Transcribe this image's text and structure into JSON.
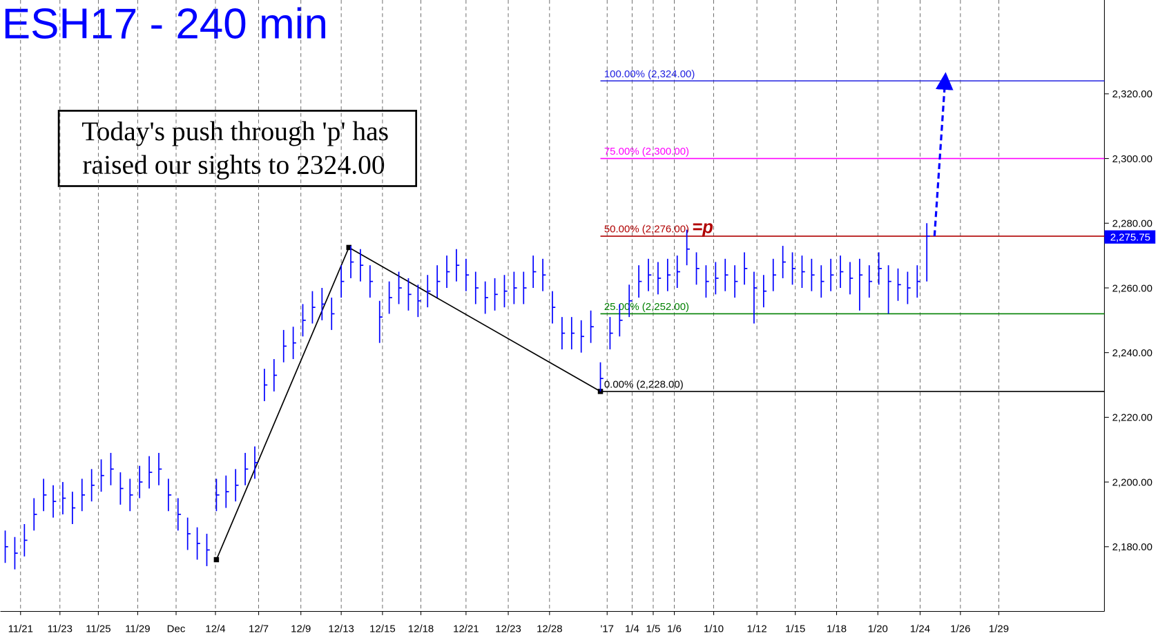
{
  "chart_data": {
    "type": "ohlc",
    "title": "ESH17 - 240 min",
    "color": "#0000ff",
    "high": [
      2185,
      2183,
      2187,
      2195,
      2201,
      2199,
      2200,
      2197,
      2201,
      2204,
      2207,
      2209,
      2203,
      2201,
      2205,
      2208,
      2209,
      2201,
      2195,
      2189,
      2186,
      2184,
      2201,
      2202,
      2204,
      2209,
      2211,
      2235,
      2238,
      2247,
      2248,
      2255,
      2259,
      2260,
      2257,
      2267,
      2273,
      2272,
      2267,
      2256,
      2262,
      2265,
      2263,
      2261,
      2264,
      2267,
      2270,
      2272,
      2269,
      2265,
      2262,
      2263,
      2264,
      2265,
      2265,
      2270,
      2269,
      2259,
      2251,
      2251,
      2250,
      2253,
      2237,
      2251,
      2255,
      2261,
      2267,
      2269,
      2268,
      2269,
      2270,
      2278,
      2271,
      2267,
      2268,
      2269,
      2267,
      2271,
      2265,
      2264,
      2269,
      2273,
      2271,
      2270,
      2269,
      2267,
      2269,
      2270,
      2268,
      2269,
      2267,
      2271,
      2267,
      2266,
      2265,
      2267,
      2280
    ],
    "low": [
      2175,
      2173,
      2177,
      2185,
      2191,
      2189,
      2190,
      2187,
      2191,
      2194,
      2197,
      2199,
      2193,
      2191,
      2195,
      2198,
      2199,
      2191,
      2185,
      2179,
      2176,
      2174,
      2191,
      2192,
      2194,
      2199,
      2201,
      2225,
      2228,
      2237,
      2238,
      2245,
      2249,
      2250,
      2247,
      2257,
      2263,
      2262,
      2257,
      2243,
      2252,
      2255,
      2253,
      2251,
      2254,
      2257,
      2260,
      2262,
      2259,
      2255,
      2252,
      2253,
      2254,
      2255,
      2255,
      2260,
      2259,
      2249,
      2241,
      2241,
      2240,
      2243,
      2228,
      2241,
      2245,
      2251,
      2257,
      2259,
      2258,
      2259,
      2260,
      2267,
      2261,
      2257,
      2258,
      2259,
      2257,
      2261,
      2249,
      2254,
      2259,
      2263,
      2261,
      2260,
      2259,
      2257,
      2259,
      2260,
      2258,
      2253,
      2257,
      2261,
      2252,
      2256,
      2255,
      2257,
      2262
    ],
    "close": [
      2180,
      2178,
      2182,
      2190,
      2196,
      2194,
      2195,
      2192,
      2196,
      2199,
      2202,
      2204,
      2198,
      2196,
      2200,
      2203,
      2204,
      2196,
      2190,
      2184,
      2181,
      2179,
      2196,
      2197,
      2199,
      2204,
      2206,
      2230,
      2233,
      2242,
      2243,
      2250,
      2254,
      2255,
      2252,
      2262,
      2268,
      2267,
      2262,
      2251,
      2257,
      2260,
      2258,
      2256,
      2259,
      2262,
      2265,
      2267,
      2264,
      2260,
      2257,
      2258,
      2259,
      2260,
      2260,
      2265,
      2264,
      2254,
      2246,
      2246,
      2245,
      2248,
      2232,
      2246,
      2250,
      2256,
      2262,
      2264,
      2263,
      2264,
      2265,
      2272,
      2266,
      2262,
      2263,
      2264,
      2262,
      2266,
      2260,
      2259,
      2264,
      2268,
      2266,
      2265,
      2264,
      2262,
      2264,
      2265,
      2263,
      2264,
      2262,
      2266,
      2262,
      2261,
      2260,
      2262,
      2276
    ],
    "xlim": [
      0,
      115
    ],
    "xticks": [
      {
        "value": 2.1,
        "label": "11/21"
      },
      {
        "value": 6.2,
        "label": "11/23"
      },
      {
        "value": 10.2,
        "label": "11/25"
      },
      {
        "value": 14.3,
        "label": "11/29"
      },
      {
        "value": 18.3,
        "label": "Dec"
      },
      {
        "value": 22.4,
        "label": "12/4"
      },
      {
        "value": 26.9,
        "label": "12/7"
      },
      {
        "value": 31.3,
        "label": "12/9"
      },
      {
        "value": 35.5,
        "label": "12/13"
      },
      {
        "value": 39.8,
        "label": "12/15"
      },
      {
        "value": 43.8,
        "label": "12/18"
      },
      {
        "value": 48.5,
        "label": "12/21"
      },
      {
        "value": 52.9,
        "label": "12/23"
      },
      {
        "value": 57.2,
        "label": "12/28"
      },
      {
        "value": 63.2,
        "label": "'17"
      },
      {
        "value": 65.8,
        "label": "1/4"
      },
      {
        "value": 68.0,
        "label": "1/5"
      },
      {
        "value": 70.2,
        "label": "1/6"
      },
      {
        "value": 74.3,
        "label": "1/10"
      },
      {
        "value": 78.8,
        "label": "1/12"
      },
      {
        "value": 82.8,
        "label": "1/15"
      },
      {
        "value": 87.1,
        "label": "1/18"
      },
      {
        "value": 91.4,
        "label": "1/20"
      },
      {
        "value": 95.8,
        "label": "1/24"
      },
      {
        "value": 100.0,
        "label": "1/26"
      },
      {
        "value": 104.0,
        "label": "1/29"
      }
    ],
    "ylim": [
      2160,
      2349
    ],
    "yticks": [
      {
        "value": 2180,
        "label": "2,180.00"
      },
      {
        "value": 2200,
        "label": "2,200.00"
      },
      {
        "value": 2220,
        "label": "2,220.00"
      },
      {
        "value": 2240,
        "label": "2,240.00"
      },
      {
        "value": 2260,
        "label": "2,260.00"
      },
      {
        "value": 2280,
        "label": "2,280.00"
      },
      {
        "value": 2300,
        "label": "2,300.00"
      },
      {
        "value": 2320,
        "label": "2,320.00"
      }
    ],
    "grid": true,
    "last_price": {
      "value": 2275.75,
      "label": "2,275.75"
    },
    "fib_start": 62.5,
    "fib_levels": [
      {
        "label": "100.00% (2,324.00)",
        "value": 2324,
        "color": "#2020e0"
      },
      {
        "label": "75.00% (2,300.00)",
        "value": 2300,
        "color": "#ff00ff"
      },
      {
        "label": "50.00% (2,276.00)",
        "value": 2276,
        "color": "#b00000",
        "marker": "=p"
      },
      {
        "label": "25.00% (2,252.00)",
        "value": 2252,
        "color": "#008000"
      },
      {
        "label": "0.00% (2,228.00)",
        "value": 2228,
        "color": "#000000"
      }
    ],
    "pattern": {
      "x": [
        22.5,
        36.3,
        62.5
      ],
      "values": [
        2176,
        2272.5,
        2228
      ]
    },
    "forecast": {
      "x": [
        97.3,
        98.4
      ],
      "values": [
        2276,
        2324
      ]
    },
    "annotation": {
      "lines": [
        "Today's push through 'p' has",
        "raised our sights to 2324.00"
      ]
    }
  }
}
